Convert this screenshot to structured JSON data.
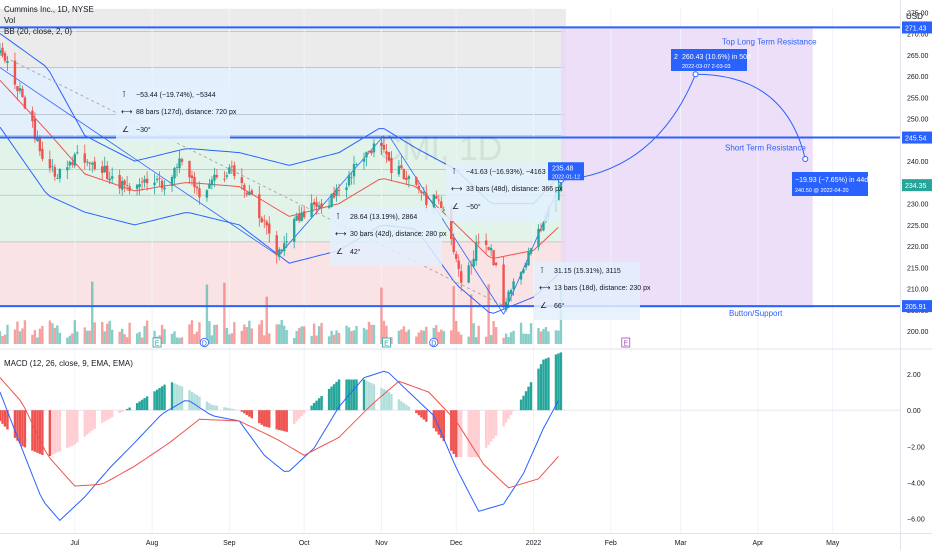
{
  "header": {
    "symbol_line": "Cummins Inc., 1D, NYSE",
    "vol_label": "Vol",
    "bb_label": "BB (20, close, 2, 0)",
    "watermark": "CMI, 1D",
    "usd_label": "USD"
  },
  "chart_data": [
    {
      "type": "candlestick",
      "x_range": [
        "2021-06-01",
        "2022-05-28"
      ],
      "ylim": [
        197,
        276
      ],
      "y_ticks": [
        200,
        205,
        210,
        215,
        220,
        225,
        230,
        235,
        240,
        245,
        250,
        255,
        260,
        265,
        270,
        275
      ],
      "x_ticks": [
        {
          "date": "2021-07-01",
          "label": "Jul"
        },
        {
          "date": "2021-08-01",
          "label": "Aug"
        },
        {
          "date": "2021-09-01",
          "label": "Sep"
        },
        {
          "date": "2021-10-01",
          "label": "Oct"
        },
        {
          "date": "2021-11-01",
          "label": "Nov"
        },
        {
          "date": "2021-12-01",
          "label": "Dec"
        },
        {
          "date": "2022-01-01",
          "label": "2022"
        },
        {
          "date": "2022-02-01",
          "label": "Feb"
        },
        {
          "date": "2022-03-01",
          "label": "Mar"
        },
        {
          "date": "2022-04-01",
          "label": "Apr"
        },
        {
          "date": "2022-05-01",
          "label": "May"
        }
      ],
      "price_path": [
        [
          "2021-06-01",
          266
        ],
        [
          "2021-06-08",
          258
        ],
        [
          "2021-06-18",
          241
        ],
        [
          "2021-06-24",
          236
        ],
        [
          "2021-07-02",
          242
        ],
        [
          "2021-07-09",
          239
        ],
        [
          "2021-07-16",
          236
        ],
        [
          "2021-07-23",
          233
        ],
        [
          "2021-07-30",
          236
        ],
        [
          "2021-08-06",
          234
        ],
        [
          "2021-08-13",
          241
        ],
        [
          "2021-08-20",
          232
        ],
        [
          "2021-08-27",
          236
        ],
        [
          "2021-09-03",
          238
        ],
        [
          "2021-09-10",
          232
        ],
        [
          "2021-09-17",
          222
        ],
        [
          "2021-09-21",
          218
        ],
        [
          "2021-09-28",
          226
        ],
        [
          "2021-10-05",
          230
        ],
        [
          "2021-10-12",
          231
        ],
        [
          "2021-10-19",
          236
        ],
        [
          "2021-10-26",
          242
        ],
        [
          "2021-11-01",
          245
        ],
        [
          "2021-11-05",
          238
        ],
        [
          "2021-11-12",
          237
        ],
        [
          "2021-11-19",
          231
        ],
        [
          "2021-11-24",
          232
        ],
        [
          "2021-11-30",
          218
        ],
        [
          "2021-12-03",
          212
        ],
        [
          "2021-12-07",
          216
        ],
        [
          "2021-12-10",
          222
        ],
        [
          "2021-12-14",
          220
        ],
        [
          "2021-12-17",
          214
        ],
        [
          "2021-12-20",
          206
        ],
        [
          "2021-12-24",
          212
        ],
        [
          "2021-12-31",
          219
        ],
        [
          "2022-01-05",
          225
        ],
        [
          "2022-01-10",
          232
        ],
        [
          "2022-01-12",
          235.5
        ]
      ],
      "bollinger": {
        "upper": [
          [
            "2021-06-01",
            270
          ],
          [
            "2021-06-20",
            262
          ],
          [
            "2021-07-05",
            246
          ],
          [
            "2021-07-25",
            240
          ],
          [
            "2021-08-15",
            243
          ],
          [
            "2021-09-05",
            242
          ],
          [
            "2021-09-25",
            239
          ],
          [
            "2021-10-15",
            242
          ],
          [
            "2021-11-01",
            248
          ],
          [
            "2021-11-15",
            243
          ],
          [
            "2021-12-01",
            238
          ],
          [
            "2021-12-15",
            230
          ],
          [
            "2022-01-01",
            230
          ],
          [
            "2022-01-12",
            237
          ]
        ],
        "lower": [
          [
            "2021-06-01",
            248
          ],
          [
            "2021-06-20",
            232
          ],
          [
            "2021-07-05",
            228
          ],
          [
            "2021-07-25",
            225
          ],
          [
            "2021-08-15",
            228
          ],
          [
            "2021-09-05",
            225
          ],
          [
            "2021-09-25",
            216
          ],
          [
            "2021-10-15",
            219
          ],
          [
            "2021-11-01",
            225
          ],
          [
            "2021-11-15",
            224
          ],
          [
            "2021-12-01",
            211
          ],
          [
            "2021-12-15",
            204
          ],
          [
            "2022-01-01",
            208
          ],
          [
            "2022-01-12",
            214
          ]
        ],
        "basis": [
          [
            "2021-06-01",
            259
          ],
          [
            "2021-06-20",
            247
          ],
          [
            "2021-07-05",
            237
          ],
          [
            "2021-07-25",
            233
          ],
          [
            "2021-08-15",
            235
          ],
          [
            "2021-09-05",
            234
          ],
          [
            "2021-09-25",
            227
          ],
          [
            "2021-10-15",
            230
          ],
          [
            "2021-11-01",
            236
          ],
          [
            "2021-11-15",
            234
          ],
          [
            "2021-12-01",
            225
          ],
          [
            "2021-12-15",
            217
          ],
          [
            "2022-01-01",
            219
          ],
          [
            "2022-01-12",
            225
          ]
        ]
      },
      "price_labels": [
        {
          "value": "275.00",
          "y": 275
        },
        {
          "value": "271.43",
          "y": 271.43
        },
        {
          "value": "245.54",
          "y": 245.54
        },
        {
          "value": "234.35",
          "y": 234.35
        },
        {
          "value": "205.91",
          "y": 205.91
        }
      ],
      "levels": [
        {
          "name": "Top Long Term Resistance",
          "value": 271.43
        },
        {
          "name": "Short Term Resistance",
          "value": 245.54
        },
        {
          "name": "Button/Support",
          "value": 205.91
        }
      ],
      "measure_boxes": [
        {
          "line1": "−53.44 (−19.74%), −5344",
          "line2": "88 bars (127d), distance: 720 px",
          "line3": "−30°",
          "from": "2021-06-01",
          "to": "2021-09-20",
          "y_from": 265,
          "y_to": 212
        },
        {
          "line1": "28.64 (13.19%), 2864",
          "line2": "30 bars (42d), distance: 280 px",
          "line3": "42°",
          "from": "2021-09-21",
          "to": "2021-11-02",
          "y_from": 218,
          "y_to": 246
        },
        {
          "line1": "−41.63 (−16.93%), −4163",
          "line2": "33 bars (48d), distance: 366 px",
          "line3": "−50°",
          "from": "2021-11-04",
          "to": "2021-12-20",
          "y_from": 246,
          "y_to": 204
        },
        {
          "line1": "31.15 (15.31%), 3115",
          "line2": "13 bars (18d), distance: 230 px",
          "line3": "66°",
          "from": "2021-12-20",
          "to": "2022-01-12",
          "y_from": 204,
          "y_to": 235
        }
      ],
      "forecast": {
        "start_label": "235.48",
        "start_date_label": "2022-01-12",
        "peak_line1": "260.43 (10.6%) in 50d",
        "peak_line2": "2022-03-07 2-03-03",
        "peak_badge": "2",
        "peak_date": "2022-03-07",
        "peak_value": 260.43,
        "end_line1": "−19.93 (−7.65%) in 44d",
        "end_line2": "240.50 @ 2022-04-20",
        "end_date": "2022-04-20",
        "end_value": 240.5,
        "box_from": "2022-01-12",
        "box_to": "2022-04-23"
      },
      "earnings_markers": [
        {
          "date": "2021-08-03",
          "label": "E"
        },
        {
          "date": "2021-08-22",
          "label": "D"
        },
        {
          "date": "2021-11-03",
          "label": "E"
        },
        {
          "date": "2021-11-22",
          "label": "D"
        },
        {
          "date": "2022-02-07",
          "label": "E"
        }
      ]
    },
    {
      "type": "bar+line",
      "title": "MACD (12, 26, close, 9, EMA, EMA)",
      "ylim": [
        -6.8,
        3.0
      ],
      "y_ticks": [
        "2.00",
        "0.00",
        "−2.00",
        "−4.00",
        "−6.00"
      ],
      "y_tick_values": [
        2,
        0,
        -2,
        -4,
        -6
      ],
      "macd": [
        [
          "2021-06-01",
          1.0
        ],
        [
          "2021-06-08",
          -1.5
        ],
        [
          "2021-06-18",
          -5.0
        ],
        [
          "2021-06-25",
          -6.1
        ],
        [
          "2021-07-05",
          -4.8
        ],
        [
          "2021-07-15",
          -3.2
        ],
        [
          "2021-07-25",
          -1.8
        ],
        [
          "2021-08-05",
          -0.2
        ],
        [
          "2021-08-15",
          0.6
        ],
        [
          "2021-08-25",
          -0.3
        ],
        [
          "2021-09-05",
          -0.6
        ],
        [
          "2021-09-15",
          -2.5
        ],
        [
          "2021-09-24",
          -3.5
        ],
        [
          "2021-10-05",
          -2.1
        ],
        [
          "2021-10-15",
          0.2
        ],
        [
          "2021-10-25",
          1.8
        ],
        [
          "2021-11-03",
          2.2
        ],
        [
          "2021-11-12",
          1.0
        ],
        [
          "2021-11-22",
          -0.3
        ],
        [
          "2021-12-01",
          -3.2
        ],
        [
          "2021-12-10",
          -5.6
        ],
        [
          "2021-12-20",
          -5.2
        ],
        [
          "2021-12-28",
          -3.5
        ],
        [
          "2022-01-05",
          -1.0
        ],
        [
          "2022-01-12",
          0.8
        ]
      ],
      "signal": [
        [
          "2021-06-01",
          1.8
        ],
        [
          "2021-06-10",
          0.4
        ],
        [
          "2021-06-20",
          -2.5
        ],
        [
          "2021-07-01",
          -4.2
        ],
        [
          "2021-07-12",
          -4.1
        ],
        [
          "2021-07-25",
          -3.1
        ],
        [
          "2021-08-08",
          -1.8
        ],
        [
          "2021-08-20",
          -0.5
        ],
        [
          "2021-09-05",
          -0.6
        ],
        [
          "2021-09-20",
          -1.6
        ],
        [
          "2021-10-01",
          -2.5
        ],
        [
          "2021-10-15",
          -1.5
        ],
        [
          "2021-10-28",
          0.3
        ],
        [
          "2021-11-08",
          1.6
        ],
        [
          "2021-11-20",
          1.0
        ],
        [
          "2021-12-01",
          -0.6
        ],
        [
          "2021-12-12",
          -3.0
        ],
        [
          "2021-12-22",
          -4.3
        ],
        [
          "2022-01-03",
          -3.8
        ],
        [
          "2022-01-12",
          -2.4
        ]
      ],
      "histogram": [
        [
          "2021-06-01",
          -0.6
        ],
        [
          "2021-06-10",
          -2.0
        ],
        [
          "2021-06-20",
          -2.6
        ],
        [
          "2021-07-01",
          -1.9
        ],
        [
          "2021-07-12",
          -0.7
        ],
        [
          "2021-07-25",
          0.3
        ],
        [
          "2021-08-08",
          1.6
        ],
        [
          "2021-08-15",
          1.2
        ],
        [
          "2021-08-25",
          0.3
        ],
        [
          "2021-09-05",
          0.0
        ],
        [
          "2021-09-15",
          -0.9
        ],
        [
          "2021-09-24",
          -1.2
        ],
        [
          "2021-10-05",
          0.4
        ],
        [
          "2021-10-15",
          1.7
        ],
        [
          "2021-10-25",
          1.7
        ],
        [
          "2021-11-03",
          1.1
        ],
        [
          "2021-11-12",
          0.2
        ],
        [
          "2021-11-22",
          -1.0
        ],
        [
          "2021-12-01",
          -2.6
        ],
        [
          "2021-12-10",
          -2.6
        ],
        [
          "2021-12-20",
          -0.9
        ],
        [
          "2021-12-28",
          0.8
        ],
        [
          "2022-01-05",
          2.8
        ],
        [
          "2022-01-12",
          3.2
        ]
      ]
    }
  ],
  "colors": {
    "up": "#26a69a",
    "down": "#ef5350",
    "level_line": "#2962ff",
    "bb": "#2962ff",
    "basis": "#ef5350",
    "macd_line": "#2962ff",
    "signal_line": "#ef5350",
    "fib_gray": "#e3e3e3",
    "fib_blue": "#d9e8fb",
    "fib_green": "#d6efe0",
    "fib_red": "#f8d7da",
    "forecast_fill": "#ead7f6"
  }
}
